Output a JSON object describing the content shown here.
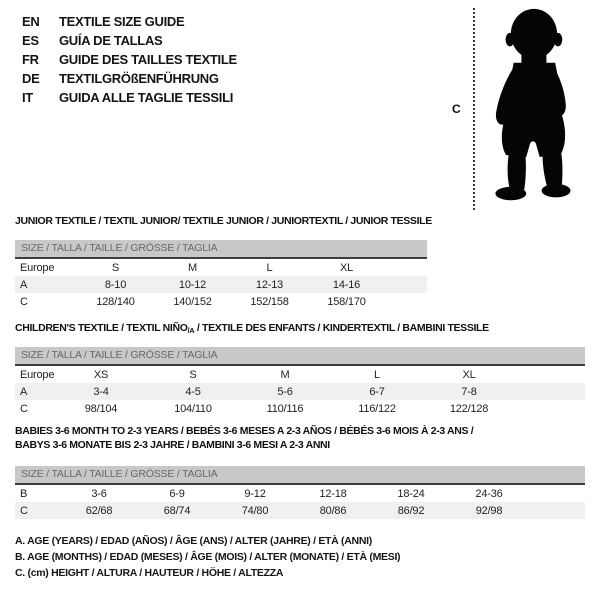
{
  "header": {
    "languages": [
      {
        "code": "EN",
        "title": "TEXTILE SIZE GUIDE"
      },
      {
        "code": "ES",
        "title": "GUÍA DE TALLAS"
      },
      {
        "code": "FR",
        "title": "GUIDE DES TAILLES TEXTILE"
      },
      {
        "code": "DE",
        "title": "TEXTILGRÖßENFÜHRUNG"
      },
      {
        "code": "IT",
        "title": "GUIDA ALLE TAGLIE TESSILI"
      }
    ]
  },
  "figure": {
    "icon": "toddler-silhouette",
    "measure_label": "C"
  },
  "size_header": "SIZE / TALLA / TAILLE / GRÖSSE / TAGLIA",
  "tables": [
    {
      "id": "junior-textile",
      "title_lines": [
        [
          {
            "text": "JUNIOR TEXTILE / TEXTIL JUNIOR/ TEXTILE JUNIOR / JUNIORTEXTIL / JUNIOR TESSILE",
            "sub": false
          }
        ]
      ],
      "rows": [
        {
          "label": "Europe",
          "values": [
            "S",
            "M",
            "L",
            "XL"
          ],
          "shade": false
        },
        {
          "label": "A",
          "values": [
            "8-10",
            "10-12",
            "12-13",
            "14-16"
          ],
          "shade": true
        },
        {
          "label": "C",
          "values": [
            "128/140",
            "140/152",
            "152/158",
            "158/170"
          ],
          "shade": false
        }
      ]
    },
    {
      "id": "childrens-textile",
      "title_lines": [
        [
          {
            "text": "CHILDREN'S TEXTILE / TEXTIL NIÑO",
            "sub": false
          },
          {
            "text": "/A",
            "sub": true
          },
          {
            "text": " / TEXTILE DES ENFANTS / KINDERTEXTIL / BAMBINI TESSILE",
            "sub": false
          }
        ]
      ],
      "rows": [
        {
          "label": "Europe",
          "values": [
            "XS",
            "S",
            "M",
            "L",
            "XL"
          ],
          "shade": false
        },
        {
          "label": "A",
          "values": [
            "3-4",
            "4-5",
            "5-6",
            "6-7",
            "7-8"
          ],
          "shade": true
        },
        {
          "label": "C",
          "values": [
            "98/104",
            "104/110",
            "110/116",
            "116/122",
            "122/128"
          ],
          "shade": false
        }
      ]
    },
    {
      "id": "babies-textile",
      "title_lines": [
        [
          {
            "text": "BABIES 3-6 MONTH TO 2-3 YEARS / BEBÉS 3-6 MESES A 2-3 AÑOS / BÉBÉS 3-6 MOIS À 2-3 ANS /",
            "sub": false
          }
        ],
        [
          {
            "text": "BABYS 3-6 MONATE BIS 2-3 JAHRE / BAMBINI 3-6 MESI A 2-3 ANNI",
            "sub": false
          }
        ]
      ],
      "rows": [
        {
          "label": "B",
          "values": [
            "3-6",
            "6-9",
            "9-12",
            "12-18",
            "18-24",
            "24-36"
          ],
          "shade": false
        },
        {
          "label": "C",
          "values": [
            "62/68",
            "68/74",
            "74/80",
            "80/86",
            "86/92",
            "92/98"
          ],
          "shade": true
        }
      ]
    }
  ],
  "footnotes": [
    "A. AGE (YEARS) / EDAD (AÑOS) / ÂGE (ANS) / ALTER (JAHRE) / ETÀ (ANNI)",
    "B. AGE (MONTHS) / EDAD (MESES) / ÂGE (MOIS) / ALTER (MONATE) / ETÀ (MESI)",
    "C. (cm) HEIGHT / ALTURA / HAUTEUR / HÖHE / ALTEZZA"
  ],
  "colors": {
    "bar_bg": "#c8c8c8",
    "bar_text": "#686868",
    "bar_border": "#3d3d3d",
    "shade_row": "#f0f0f0",
    "text": "#1a1a1a",
    "silhouette": "#050505"
  }
}
